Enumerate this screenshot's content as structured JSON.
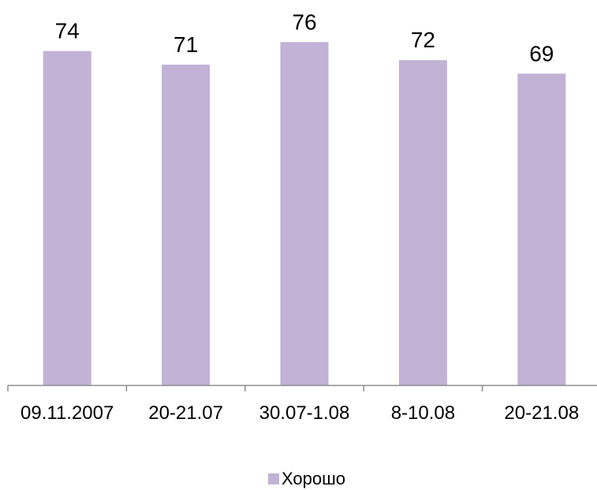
{
  "chart_data": {
    "type": "bar",
    "categories": [
      "09.11.2007",
      "20-21.07",
      "30.07-1.08",
      "8-10.08",
      "20-21.08"
    ],
    "series": [
      {
        "name": "Хорошо",
        "values": [
          74,
          71,
          76,
          72,
          69
        ],
        "color": "#c2b2d6"
      }
    ],
    "ylim": [
      0,
      80
    ],
    "grid": false,
    "y_axis_visible": false,
    "data_labels": true,
    "legend_position": "bottom"
  }
}
